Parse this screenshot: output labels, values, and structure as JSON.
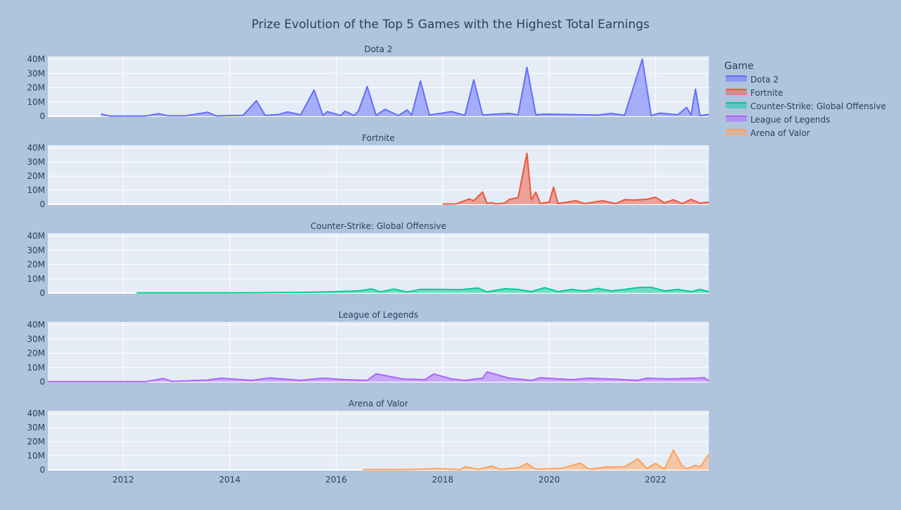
{
  "colors": {
    "page_background": "#b0c4de",
    "plot_background": "#e5ecf6",
    "grid": "#ffffff",
    "text": "#2a3f5f"
  },
  "chart_data": {
    "type": "area",
    "title": "Prize Evolution of the Top 5 Games with the Highest Total Earnings",
    "legend_title": "Game",
    "legend_position": "right",
    "grid": true,
    "shared_x_axis": true,
    "xlim": [
      "2010-08-01",
      "2023-01-01"
    ],
    "x_ticks": [
      "2012",
      "2014",
      "2016",
      "2018",
      "2020",
      "2022"
    ],
    "ylim": [
      0,
      42000000
    ],
    "y_ticks": [
      "0",
      "10M",
      "20M",
      "30M",
      "40M"
    ],
    "subplots": [
      {
        "name": "Dota 2",
        "color": "#636efa",
        "points": [
          [
            "2011-08-01",
            1600000
          ],
          [
            "2011-10-01",
            100000
          ],
          [
            "2012-01-01",
            80000
          ],
          [
            "2012-06-01",
            150000
          ],
          [
            "2012-09-01",
            1800000
          ],
          [
            "2012-11-01",
            300000
          ],
          [
            "2013-03-01",
            300000
          ],
          [
            "2013-08-01",
            2800000
          ],
          [
            "2013-10-01",
            200000
          ],
          [
            "2014-01-01",
            500000
          ],
          [
            "2014-04-01",
            600000
          ],
          [
            "2014-07-01",
            10900000
          ],
          [
            "2014-09-01",
            600000
          ],
          [
            "2014-12-01",
            1200000
          ],
          [
            "2015-02-01",
            3000000
          ],
          [
            "2015-05-01",
            1000000
          ],
          [
            "2015-08-01",
            18400000
          ],
          [
            "2015-10-01",
            700000
          ],
          [
            "2015-11-01",
            3200000
          ],
          [
            "2016-02-01",
            600000
          ],
          [
            "2016-03-01",
            3500000
          ],
          [
            "2016-05-01",
            600000
          ],
          [
            "2016-06-01",
            3500000
          ],
          [
            "2016-08-01",
            20800000
          ],
          [
            "2016-10-01",
            600000
          ],
          [
            "2016-12-01",
            4900000
          ],
          [
            "2017-03-01",
            500000
          ],
          [
            "2017-05-01",
            4400000
          ],
          [
            "2017-06-01",
            800000
          ],
          [
            "2017-08-01",
            24700000
          ],
          [
            "2017-10-01",
            900000
          ],
          [
            "2018-01-01",
            2200000
          ],
          [
            "2018-03-01",
            3300000
          ],
          [
            "2018-06-01",
            600000
          ],
          [
            "2018-08-01",
            25500000
          ],
          [
            "2018-10-01",
            900000
          ],
          [
            "2019-01-01",
            1500000
          ],
          [
            "2019-04-01",
            2000000
          ],
          [
            "2019-06-01",
            1000000
          ],
          [
            "2019-08-01",
            34300000
          ],
          [
            "2019-10-01",
            1000000
          ],
          [
            "2019-12-01",
            1500000
          ],
          [
            "2020-06-01",
            1200000
          ],
          [
            "2020-12-01",
            800000
          ],
          [
            "2021-03-01",
            2000000
          ],
          [
            "2021-06-01",
            600000
          ],
          [
            "2021-10-01",
            40000000
          ],
          [
            "2021-12-01",
            500000
          ],
          [
            "2022-02-01",
            2200000
          ],
          [
            "2022-06-01",
            1000000
          ],
          [
            "2022-08-01",
            6200000
          ],
          [
            "2022-09-01",
            800000
          ],
          [
            "2022-10-01",
            19000000
          ],
          [
            "2022-11-01",
            500000
          ],
          [
            "2023-01-01",
            1200000
          ]
        ]
      },
      {
        "name": "Fortnite",
        "color": "#ef553b",
        "points": [
          [
            "2018-01-01",
            200000
          ],
          [
            "2018-04-01",
            300000
          ],
          [
            "2018-07-01",
            3800000
          ],
          [
            "2018-08-01",
            2500000
          ],
          [
            "2018-10-01",
            8700000
          ],
          [
            "2018-11-01",
            600000
          ],
          [
            "2018-12-01",
            1200000
          ],
          [
            "2019-01-01",
            300000
          ],
          [
            "2019-03-01",
            800000
          ],
          [
            "2019-04-01",
            3400000
          ],
          [
            "2019-06-01",
            4800000
          ],
          [
            "2019-08-01",
            36200000
          ],
          [
            "2019-09-01",
            3000000
          ],
          [
            "2019-10-01",
            8600000
          ],
          [
            "2019-11-01",
            600000
          ],
          [
            "2020-01-01",
            1500000
          ],
          [
            "2020-02-01",
            12200000
          ],
          [
            "2020-03-01",
            500000
          ],
          [
            "2020-07-01",
            2500000
          ],
          [
            "2020-09-01",
            500000
          ],
          [
            "2021-01-01",
            2500000
          ],
          [
            "2021-04-01",
            500000
          ],
          [
            "2021-06-01",
            3300000
          ],
          [
            "2021-08-01",
            3000000
          ],
          [
            "2021-11-01",
            3500000
          ],
          [
            "2022-01-01",
            5000000
          ],
          [
            "2022-03-01",
            1000000
          ],
          [
            "2022-05-01",
            3200000
          ],
          [
            "2022-07-01",
            500000
          ],
          [
            "2022-09-01",
            3500000
          ],
          [
            "2022-11-01",
            800000
          ],
          [
            "2023-01-01",
            1500000
          ]
        ]
      },
      {
        "name": "Counter-Strike: Global Offensive",
        "color": "#00cc96",
        "points": [
          [
            "2012-04-01",
            100000
          ],
          [
            "2013-06-01",
            150000
          ],
          [
            "2014-06-01",
            200000
          ],
          [
            "2015-06-01",
            500000
          ],
          [
            "2015-11-01",
            800000
          ],
          [
            "2016-06-01",
            1500000
          ],
          [
            "2016-09-01",
            2800000
          ],
          [
            "2016-11-01",
            800000
          ],
          [
            "2017-02-01",
            2800000
          ],
          [
            "2017-05-01",
            700000
          ],
          [
            "2017-08-01",
            2600000
          ],
          [
            "2018-01-01",
            2500000
          ],
          [
            "2018-05-01",
            2300000
          ],
          [
            "2018-09-01",
            3500000
          ],
          [
            "2018-11-01",
            800000
          ],
          [
            "2019-03-01",
            3000000
          ],
          [
            "2019-06-01",
            2500000
          ],
          [
            "2019-09-01",
            1000000
          ],
          [
            "2019-12-01",
            3800000
          ],
          [
            "2020-03-01",
            1000000
          ],
          [
            "2020-06-01",
            2500000
          ],
          [
            "2020-09-01",
            1500000
          ],
          [
            "2020-12-01",
            3200000
          ],
          [
            "2021-03-01",
            1500000
          ],
          [
            "2021-06-01",
            2500000
          ],
          [
            "2021-09-01",
            3800000
          ],
          [
            "2021-12-01",
            4000000
          ],
          [
            "2022-03-01",
            1500000
          ],
          [
            "2022-06-01",
            2500000
          ],
          [
            "2022-09-01",
            1000000
          ],
          [
            "2022-11-01",
            2500000
          ],
          [
            "2023-01-01",
            1000000
          ]
        ]
      },
      {
        "name": "League of Legends",
        "color": "#ab63fa",
        "points": [
          [
            "2010-08-01",
            100000
          ],
          [
            "2012-06-01",
            100000
          ],
          [
            "2012-10-01",
            2300000
          ],
          [
            "2012-12-01",
            300000
          ],
          [
            "2013-08-01",
            1200000
          ],
          [
            "2013-11-01",
            2500000
          ],
          [
            "2014-06-01",
            1000000
          ],
          [
            "2014-10-01",
            2700000
          ],
          [
            "2015-05-01",
            1000000
          ],
          [
            "2015-10-01",
            2500000
          ],
          [
            "2016-03-01",
            1500000
          ],
          [
            "2016-08-01",
            1000000
          ],
          [
            "2016-10-01",
            5600000
          ],
          [
            "2017-04-01",
            2000000
          ],
          [
            "2017-09-01",
            1500000
          ],
          [
            "2017-11-01",
            5500000
          ],
          [
            "2018-03-01",
            2000000
          ],
          [
            "2018-06-01",
            1000000
          ],
          [
            "2018-10-01",
            2500000
          ],
          [
            "2018-11-01",
            6900000
          ],
          [
            "2019-04-01",
            2500000
          ],
          [
            "2019-09-01",
            1000000
          ],
          [
            "2019-11-01",
            2800000
          ],
          [
            "2020-06-01",
            1500000
          ],
          [
            "2020-10-01",
            2500000
          ],
          [
            "2021-04-01",
            1800000
          ],
          [
            "2021-09-01",
            1000000
          ],
          [
            "2021-11-01",
            2500000
          ],
          [
            "2022-04-01",
            2000000
          ],
          [
            "2022-10-01",
            2500000
          ],
          [
            "2022-12-01",
            2800000
          ],
          [
            "2023-01-01",
            800000
          ]
        ]
      },
      {
        "name": "Arena of Valor",
        "color": "#ffa15a",
        "points": [
          [
            "2016-07-01",
            200000
          ],
          [
            "2017-06-01",
            300000
          ],
          [
            "2017-12-01",
            900000
          ],
          [
            "2018-05-01",
            200000
          ],
          [
            "2018-06-01",
            2300000
          ],
          [
            "2018-09-01",
            300000
          ],
          [
            "2018-12-01",
            2700000
          ],
          [
            "2019-02-01",
            400000
          ],
          [
            "2019-06-01",
            1500000
          ],
          [
            "2019-08-01",
            4500000
          ],
          [
            "2019-10-01",
            500000
          ],
          [
            "2020-04-01",
            1200000
          ],
          [
            "2020-08-01",
            4800000
          ],
          [
            "2020-10-01",
            500000
          ],
          [
            "2021-02-01",
            2000000
          ],
          [
            "2021-06-01",
            2200000
          ],
          [
            "2021-09-01",
            7800000
          ],
          [
            "2021-11-01",
            1000000
          ],
          [
            "2022-01-01",
            4600000
          ],
          [
            "2022-03-01",
            500000
          ],
          [
            "2022-05-01",
            14000000
          ],
          [
            "2022-07-01",
            2800000
          ],
          [
            "2022-08-01",
            700000
          ],
          [
            "2022-10-01",
            3200000
          ],
          [
            "2022-11-01",
            2000000
          ],
          [
            "2023-01-01",
            10900000
          ]
        ]
      }
    ]
  }
}
